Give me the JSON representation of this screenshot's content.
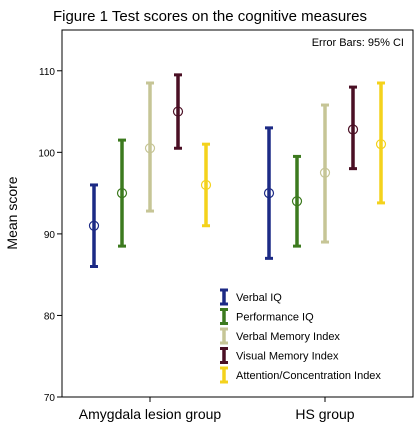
{
  "chart_data": {
    "type": "errorbar",
    "title": "Figure 1 Test scores on the cognitive measures",
    "ylabel": "Mean score",
    "xlabel": "",
    "annotation": "Error Bars: 95% CI",
    "ylim": [
      70,
      115
    ],
    "yticks": [
      "70",
      "80",
      "90",
      "100",
      "110"
    ],
    "categories": [
      "Amygdala lesion group",
      "HS group"
    ],
    "grid": false,
    "legend_position": "bottom-center",
    "series": [
      {
        "name": "Verbal IQ",
        "color": "#1c2a85",
        "mean": [
          91.0,
          95.0
        ],
        "lower": [
          86.0,
          87.0
        ],
        "upper": [
          96.0,
          103.0
        ]
      },
      {
        "name": "Performance IQ",
        "color": "#3c7a1e",
        "mean": [
          95.0,
          94.0
        ],
        "lower": [
          88.5,
          88.5
        ],
        "upper": [
          101.5,
          99.5
        ]
      },
      {
        "name": "Verbal Memory Index",
        "color": "#c6c596",
        "mean": [
          100.5,
          97.5
        ],
        "lower": [
          92.8,
          89.0
        ],
        "upper": [
          108.5,
          105.8
        ]
      },
      {
        "name": "Visual Memory Index",
        "color": "#4a0f24",
        "mean": [
          105.0,
          102.8
        ],
        "lower": [
          100.5,
          98.0
        ],
        "upper": [
          109.5,
          108.0
        ]
      },
      {
        "name": "Attention/Concentration Index",
        "color": "#f4d21c",
        "mean": [
          96.0,
          101.0
        ],
        "lower": [
          91.0,
          93.8
        ],
        "upper": [
          101.0,
          108.5
        ]
      }
    ]
  }
}
